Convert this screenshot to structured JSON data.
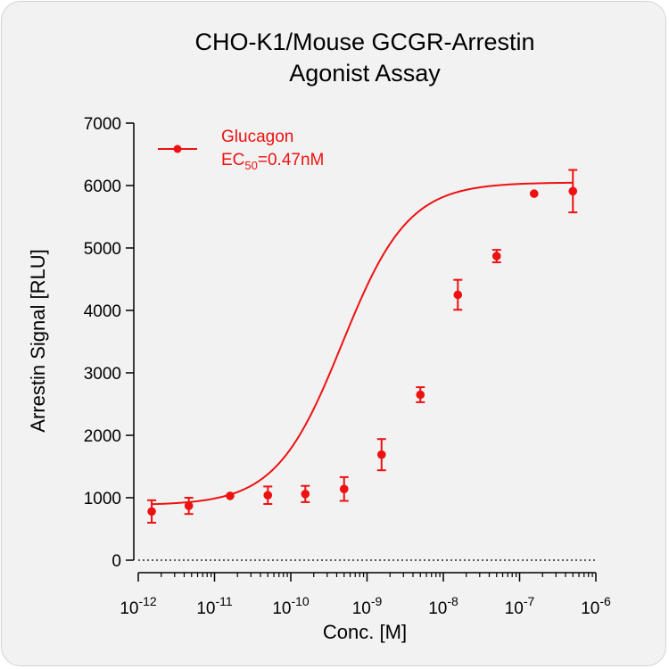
{
  "chart_data": {
    "type": "scatter",
    "title": [
      "CHO-K1/Mouse GCGR-Arrestin",
      "Agonist Assay"
    ],
    "xlabel": "Conc. [M]",
    "ylabel": "Arrestin Signal [RLU]",
    "x_scale": "log",
    "xlim": [
      1e-12,
      1e-06
    ],
    "ylim": [
      0,
      7000
    ],
    "x_tick_base": "10",
    "x_tick_exponents": [
      "-12",
      "-11",
      "-10",
      "-9",
      "-8",
      "-7",
      "-6"
    ],
    "y_ticks": [
      "0",
      "1000",
      "2000",
      "3000",
      "4000",
      "5000",
      "6000",
      "7000"
    ],
    "baseline": "dotted line at y = 0",
    "color": "#ee1111",
    "legend_placement": "top-left",
    "series": [
      {
        "name": "Glucagon",
        "x": [
          1.5e-12,
          4.6e-12,
          1.6e-11,
          5e-11,
          1.55e-10,
          5e-10,
          1.55e-09,
          5e-09,
          1.55e-08,
          5e-08,
          1.55e-07,
          5e-07
        ],
        "y": [
          780,
          870,
          1030,
          1040,
          1060,
          1140,
          1690,
          2650,
          4250,
          4870,
          5870,
          5910
        ],
        "error": [
          180,
          130,
          0,
          140,
          130,
          190,
          250,
          120,
          240,
          100,
          0,
          340
        ]
      }
    ],
    "fit": {
      "model": "4PL",
      "bottom": 880,
      "top": 6050,
      "ec50": 4.7e-10,
      "hill": 1.0
    },
    "legend": {
      "series_label": "Glucagon",
      "ec_prefix": "EC",
      "ec_subscript": "50",
      "ec_value": "=0.47nM"
    }
  }
}
